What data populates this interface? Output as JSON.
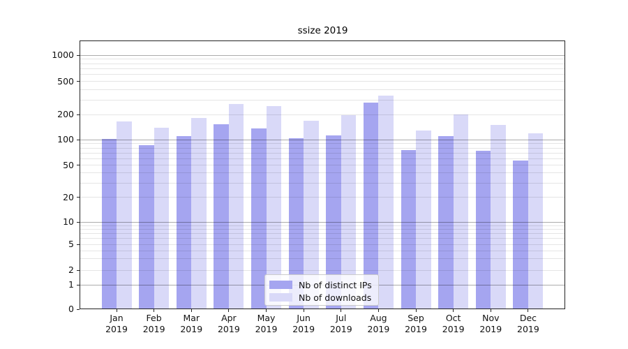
{
  "chart_data": {
    "type": "bar",
    "title": "ssize 2019",
    "categories": [
      "Jan",
      "Feb",
      "Mar",
      "Apr",
      "May",
      "Jun",
      "Jul",
      "Aug",
      "Sep",
      "Oct",
      "Nov",
      "Dec"
    ],
    "category_sub_label": "2019",
    "series": [
      {
        "name": "Nb of distinct IPs",
        "color": "#a5a5f0",
        "values": [
          103,
          86,
          110,
          155,
          137,
          104,
          113,
          280,
          75,
          110,
          74,
          57
        ]
      },
      {
        "name": "Nb of downloads",
        "color": "#d9d9f8",
        "values": [
          165,
          140,
          182,
          270,
          252,
          168,
          197,
          340,
          130,
          200,
          151,
          119
        ]
      }
    ],
    "y_ticks": [
      0,
      1,
      2,
      5,
      10,
      20,
      50,
      100,
      200,
      500,
      1000
    ],
    "y_scale": "symlog",
    "ylim": [
      0,
      1400
    ],
    "grid": true,
    "legend_position": "lower center inside",
    "axis_color": "#222222",
    "major_grid_color": "#aaaaaa",
    "minor_grid_color": "#e6e6e6"
  }
}
